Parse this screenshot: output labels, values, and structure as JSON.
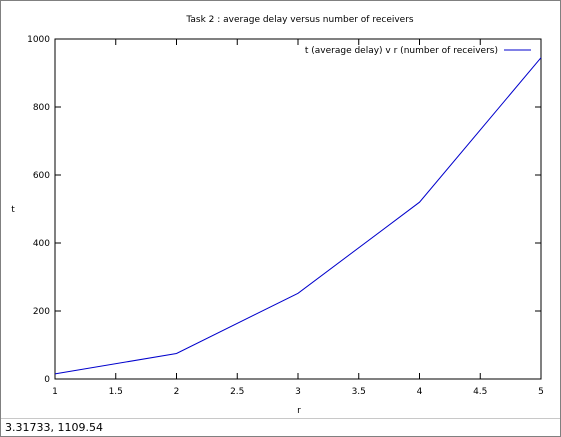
{
  "status_bar": {
    "cursor_readout": "3.31733,  1109.54"
  },
  "colors": {
    "series_line": "#0000cc",
    "axes": "#000000",
    "background": "#ffffff"
  },
  "chart_data": {
    "type": "line",
    "title": "Task 2 : average delay versus number of receivers",
    "xlabel": "r",
    "ylabel": "t",
    "xlim": [
      1,
      5
    ],
    "ylim": [
      0,
      1000
    ],
    "xticks": [
      "1",
      "1.5",
      "2",
      "2.5",
      "3",
      "3.5",
      "4",
      "4.5",
      "5"
    ],
    "yticks": [
      "0",
      "200",
      "400",
      "600",
      "800",
      "1000"
    ],
    "grid": false,
    "legend_position": "top-right",
    "series": [
      {
        "name": "t (average delay) v r (number of receivers)",
        "x": [
          1,
          2,
          3,
          4,
          5
        ],
        "y": [
          15,
          75,
          252,
          520,
          945
        ]
      }
    ]
  }
}
